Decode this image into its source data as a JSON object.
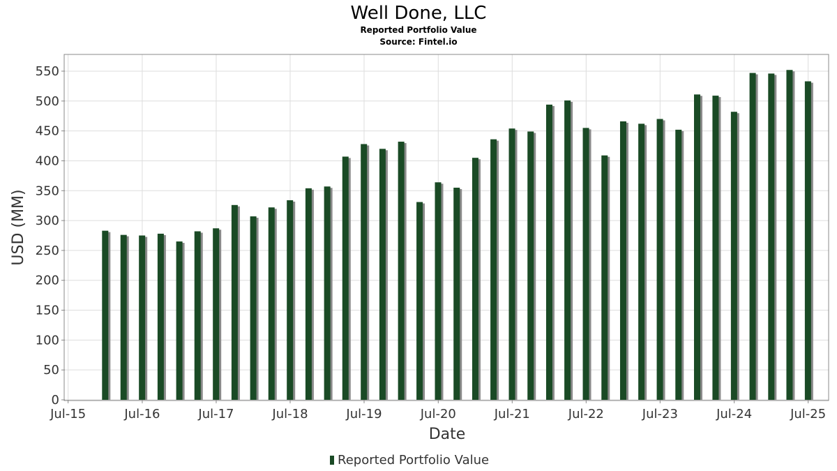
{
  "chart_data": {
    "type": "bar",
    "title": "Well Done, LLC",
    "subtitle": "Reported Portfolio Value",
    "source": "Source: Fintel.io",
    "xlabel": "Date",
    "ylabel": "USD (MM)",
    "ylim": [
      0,
      578
    ],
    "yticks": [
      0,
      50,
      100,
      150,
      200,
      250,
      300,
      350,
      400,
      450,
      500,
      550
    ],
    "xlim": [
      "2015-06-15",
      "2025-10-10"
    ],
    "xticks": [
      {
        "label": "Jul-15",
        "date": "2015-07-01"
      },
      {
        "label": "Jul-16",
        "date": "2016-07-01"
      },
      {
        "label": "Jul-17",
        "date": "2017-07-01"
      },
      {
        "label": "Jul-18",
        "date": "2018-07-01"
      },
      {
        "label": "Jul-19",
        "date": "2019-07-01"
      },
      {
        "label": "Jul-20",
        "date": "2020-07-01"
      },
      {
        "label": "Jul-21",
        "date": "2021-07-01"
      },
      {
        "label": "Jul-22",
        "date": "2022-07-01"
      },
      {
        "label": "Jul-23",
        "date": "2023-07-01"
      },
      {
        "label": "Jul-24",
        "date": "2024-07-01"
      },
      {
        "label": "Jul-25",
        "date": "2025-07-01"
      }
    ],
    "grid": true,
    "legend_position": "bottom",
    "colors": {
      "bar": "#1a4a25",
      "shadow": "#8a8a8a",
      "grid": "#dddddd",
      "frame": "#888888"
    },
    "series": [
      {
        "name": "Reported Portfolio Value",
        "points": [
          {
            "date": "2015-12-31",
            "value": 283
          },
          {
            "date": "2016-03-31",
            "value": 276
          },
          {
            "date": "2016-06-30",
            "value": 275
          },
          {
            "date": "2016-09-30",
            "value": 278
          },
          {
            "date": "2016-12-31",
            "value": 265
          },
          {
            "date": "2017-03-31",
            "value": 282
          },
          {
            "date": "2017-06-30",
            "value": 287
          },
          {
            "date": "2017-09-30",
            "value": 326
          },
          {
            "date": "2017-12-31",
            "value": 307
          },
          {
            "date": "2018-03-31",
            "value": 322
          },
          {
            "date": "2018-06-30",
            "value": 334
          },
          {
            "date": "2018-09-30",
            "value": 354
          },
          {
            "date": "2018-12-31",
            "value": 357
          },
          {
            "date": "2019-03-31",
            "value": 407
          },
          {
            "date": "2019-06-30",
            "value": 428
          },
          {
            "date": "2019-09-30",
            "value": 420
          },
          {
            "date": "2019-12-31",
            "value": 432
          },
          {
            "date": "2020-03-31",
            "value": 331
          },
          {
            "date": "2020-06-30",
            "value": 364
          },
          {
            "date": "2020-09-30",
            "value": 355
          },
          {
            "date": "2020-12-31",
            "value": 405
          },
          {
            "date": "2021-03-31",
            "value": 436
          },
          {
            "date": "2021-06-30",
            "value": 454
          },
          {
            "date": "2021-09-30",
            "value": 449
          },
          {
            "date": "2021-12-31",
            "value": 494
          },
          {
            "date": "2022-03-31",
            "value": 501
          },
          {
            "date": "2022-06-30",
            "value": 455
          },
          {
            "date": "2022-09-30",
            "value": 409
          },
          {
            "date": "2022-12-31",
            "value": 466
          },
          {
            "date": "2023-03-31",
            "value": 462
          },
          {
            "date": "2023-06-30",
            "value": 470
          },
          {
            "date": "2023-09-30",
            "value": 452
          },
          {
            "date": "2023-12-31",
            "value": 511
          },
          {
            "date": "2024-03-31",
            "value": 509
          },
          {
            "date": "2024-06-30",
            "value": 482
          },
          {
            "date": "2024-09-30",
            "value": 547
          },
          {
            "date": "2024-12-31",
            "value": 546
          },
          {
            "date": "2025-03-31",
            "value": 552
          },
          {
            "date": "2025-06-30",
            "value": 533
          }
        ]
      }
    ]
  }
}
